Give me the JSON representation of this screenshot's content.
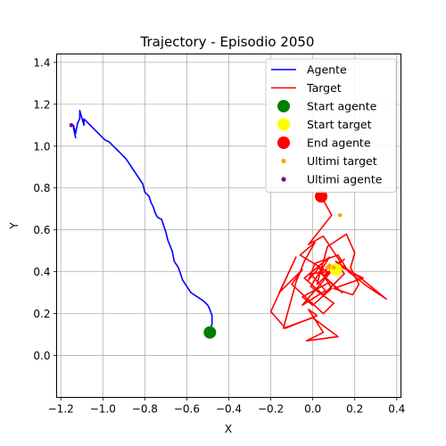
{
  "chart_data": {
    "type": "line",
    "title": "Trajectory - Episodio 2050",
    "xlabel": "X",
    "ylabel": "Y",
    "xlim": [
      -1.22,
      0.42
    ],
    "ylim": [
      -0.2,
      1.44
    ],
    "xticks": [
      -1.2,
      -1.0,
      -0.8,
      -0.6,
      -0.4,
      -0.2,
      0.0,
      0.2,
      0.4
    ],
    "xtick_labels": [
      "−1.2",
      "−1.0",
      "−0.8",
      "−0.6",
      "−0.4",
      "−0.2",
      "0.0",
      "0.2",
      "0.4"
    ],
    "yticks": [
      0.0,
      0.2,
      0.4,
      0.6,
      0.8,
      1.0,
      1.2,
      1.4
    ],
    "ytick_labels": [
      "0.0",
      "0.2",
      "0.4",
      "0.6",
      "0.8",
      "1.0",
      "1.2",
      "1.4"
    ],
    "grid": true,
    "legend_position": "top-right",
    "series": [
      {
        "name": "Agente",
        "kind": "line",
        "color": "#0000ff",
        "x": [
          -0.49,
          -0.48,
          -0.48,
          -0.49,
          -0.5,
          -0.52,
          -0.55,
          -0.58,
          -0.6,
          -0.62,
          -0.63,
          -0.64,
          -0.66,
          -0.67,
          -0.69,
          -0.7,
          -0.71,
          -0.72,
          -0.74,
          -0.75,
          -0.76,
          -0.77,
          -0.78,
          -0.8,
          -0.81,
          -0.83,
          -0.85,
          -0.87,
          -0.89,
          -0.91,
          -0.93,
          -0.95,
          -0.97,
          -0.99,
          -1.01,
          -1.03,
          -1.05,
          -1.07,
          -1.09,
          -1.09,
          -1.11,
          -1.11,
          -1.12,
          -1.13,
          -1.14,
          -1.13,
          -1.14
        ],
        "y": [
          0.12,
          0.15,
          0.19,
          0.22,
          0.24,
          0.26,
          0.28,
          0.3,
          0.33,
          0.36,
          0.39,
          0.42,
          0.45,
          0.5,
          0.55,
          0.59,
          0.62,
          0.65,
          0.66,
          0.68,
          0.71,
          0.73,
          0.76,
          0.78,
          0.82,
          0.85,
          0.88,
          0.91,
          0.94,
          0.96,
          0.98,
          1.0,
          1.02,
          1.03,
          1.05,
          1.07,
          1.09,
          1.11,
          1.13,
          1.1,
          1.17,
          1.13,
          1.11,
          1.06,
          1.1,
          1.04,
          1.09
        ]
      },
      {
        "name": "Target",
        "kind": "line",
        "color": "#ff0000",
        "x": [
          0.11,
          0.05,
          0.15,
          0.02,
          0.07,
          0.16,
          0.2,
          0.18,
          0.22,
          0.19,
          0.1,
          0.24,
          0.12,
          0.03,
          0.14,
          0.08,
          -0.05,
          0.0,
          0.09,
          0.03,
          -0.02,
          0.01,
          0.12,
          0.17,
          0.26,
          0.35,
          0.24,
          0.11,
          0.15,
          0.05,
          -0.04,
          0.08,
          -0.01,
          0.1,
          0.05,
          -0.1,
          -0.05,
          -0.16,
          -0.08,
          -0.2,
          -0.13,
          0.02,
          -0.02,
          0.05,
          -0.03,
          0.12,
          0.0,
          -0.14,
          -0.08,
          -0.04,
          0.01,
          -0.06,
          0.07,
          -0.01,
          0.06,
          -0.05,
          0.13,
          0.05,
          -0.02,
          0.09,
          0.04
        ],
        "y": [
          0.41,
          0.38,
          0.46,
          0.34,
          0.52,
          0.58,
          0.49,
          0.42,
          0.34,
          0.29,
          0.32,
          0.37,
          0.43,
          0.4,
          0.3,
          0.35,
          0.28,
          0.24,
          0.32,
          0.42,
          0.36,
          0.44,
          0.48,
          0.4,
          0.33,
          0.27,
          0.36,
          0.45,
          0.39,
          0.29,
          0.37,
          0.47,
          0.33,
          0.25,
          0.2,
          0.34,
          0.41,
          0.3,
          0.47,
          0.21,
          0.13,
          0.19,
          0.22,
          0.11,
          0.07,
          0.09,
          0.18,
          0.13,
          0.35,
          0.45,
          0.54,
          0.48,
          0.4,
          0.39,
          0.31,
          0.24,
          0.45,
          0.57,
          0.53,
          0.67,
          0.76
        ]
      },
      {
        "name": "Start agente",
        "kind": "point",
        "color": "#008000",
        "x": [
          -0.49
        ],
        "y": [
          0.11
        ]
      },
      {
        "name": "Start target",
        "kind": "point",
        "color": "#ffff00",
        "x": [
          0.11
        ],
        "y": [
          0.41
        ]
      },
      {
        "name": "End agente",
        "kind": "point",
        "color": "#ff0000",
        "x": [
          0.04
        ],
        "y": [
          0.76
        ]
      },
      {
        "name": "Ultimi target",
        "kind": "point",
        "color": "#ffa500",
        "x": [
          0.07,
          0.08,
          0.1,
          0.13
        ],
        "y": [
          0.42,
          0.43,
          0.42,
          0.67
        ]
      },
      {
        "name": "Ultimi agente",
        "kind": "point",
        "color": "#800080",
        "x": [
          -1.15
        ],
        "y": [
          1.1
        ]
      }
    ]
  }
}
